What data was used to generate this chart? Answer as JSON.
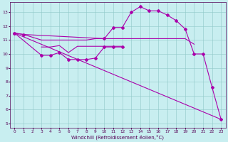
{
  "xlabel": "Windchill (Refroidissement éolien,°C)",
  "bg_color": "#c8eef0",
  "line_color": "#aa00aa",
  "yticks": [
    5,
    6,
    7,
    8,
    9,
    10,
    11,
    12,
    13
  ],
  "xticks": [
    0,
    1,
    2,
    3,
    4,
    5,
    6,
    7,
    8,
    9,
    10,
    11,
    12,
    13,
    14,
    15,
    16,
    17,
    18,
    19,
    20,
    21,
    22,
    23
  ],
  "line1_x": [
    0,
    1,
    10,
    11,
    12,
    13,
    14,
    15,
    16,
    17,
    18,
    19,
    20,
    21,
    22,
    23
  ],
  "line1_y": [
    11.5,
    11.4,
    11.1,
    11.9,
    11.9,
    13.0,
    13.4,
    13.1,
    13.1,
    12.8,
    12.4,
    11.8,
    10.0,
    10.0,
    7.6,
    5.3
  ],
  "line2_x": [
    0,
    1,
    3,
    4,
    5,
    6,
    7,
    8,
    9,
    10,
    11,
    12,
    13,
    14,
    15,
    16,
    17,
    18,
    19,
    20
  ],
  "line2_y": [
    11.5,
    11.4,
    11.0,
    11.0,
    11.0,
    11.0,
    11.0,
    11.0,
    11.1,
    11.1,
    11.1,
    11.1,
    11.1,
    11.1,
    11.1,
    11.1,
    11.1,
    11.1,
    11.1,
    10.7
  ],
  "line3_x": [
    3,
    4,
    5,
    6,
    7,
    8,
    9,
    10,
    11,
    12
  ],
  "line3_y": [
    10.5,
    10.5,
    10.6,
    10.1,
    10.55,
    10.55,
    10.55,
    10.55,
    10.55,
    10.55
  ],
  "line4_x": [
    0,
    3,
    4,
    5,
    6,
    7,
    8,
    9,
    10,
    11,
    12
  ],
  "line4_y": [
    11.5,
    9.9,
    9.9,
    10.1,
    9.6,
    9.6,
    9.6,
    9.7,
    10.5,
    10.5,
    10.5
  ],
  "line5_x": [
    0,
    23
  ],
  "line5_y": [
    11.5,
    5.3
  ]
}
